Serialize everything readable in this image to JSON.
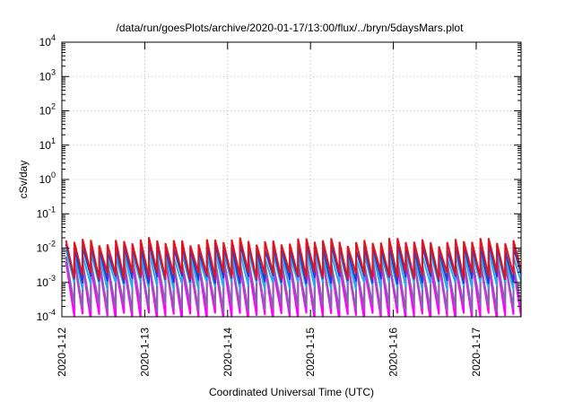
{
  "chart_data": {
    "type": "line",
    "title": "/data/run/goesPlots/archive/2020-01-17/13:00/flux/../bryn/5daysMars.plot",
    "xlabel": "Coordinated Universal Time (UTC)",
    "ylabel": "cSv/day",
    "xlim": [
      "2020-01-12",
      "2020-01-17 13:00"
    ],
    "ylim": [
      0.0001,
      10000
    ],
    "y_scale": "log",
    "x_ticks": [
      "2020-1-12",
      "2020-1-13",
      "2020-1-14",
      "2020-1-15",
      "2020-1-16",
      "2020-1-17"
    ],
    "y_ticks": [
      {
        "value": 0.0001,
        "mant": "10",
        "exp": "-4"
      },
      {
        "value": 0.001,
        "mant": "10",
        "exp": "-3"
      },
      {
        "value": 0.01,
        "mant": "10",
        "exp": "-2"
      },
      {
        "value": 0.1,
        "mant": "10",
        "exp": "-1"
      },
      {
        "value": 1,
        "mant": "10",
        "exp": "0"
      },
      {
        "value": 10,
        "mant": "10",
        "exp": "1"
      },
      {
        "value": 100,
        "mant": "10",
        "exp": "2"
      },
      {
        "value": 1000,
        "mant": "10",
        "exp": "3"
      },
      {
        "value": 10000,
        "mant": "10",
        "exp": "4"
      }
    ],
    "grid": true,
    "legend": "none",
    "pattern": {
      "cycles_per_day": 10,
      "start_day": 0.05,
      "end_day": 5.5
    },
    "series": [
      {
        "color": "#ff00ff",
        "peak": 0.0035,
        "trough": 0.0001
      },
      {
        "color": "#8a60b0",
        "peak": 0.0045,
        "trough": 0.00018
      },
      {
        "color": "#2aa8e8",
        "peak": 0.007,
        "trough": 0.0008
      },
      {
        "color": "#1e3fd8",
        "peak": 0.011,
        "trough": 0.0012
      },
      {
        "color": "#e0141e",
        "peak": 0.016,
        "trough": 0.0016
      }
    ]
  }
}
